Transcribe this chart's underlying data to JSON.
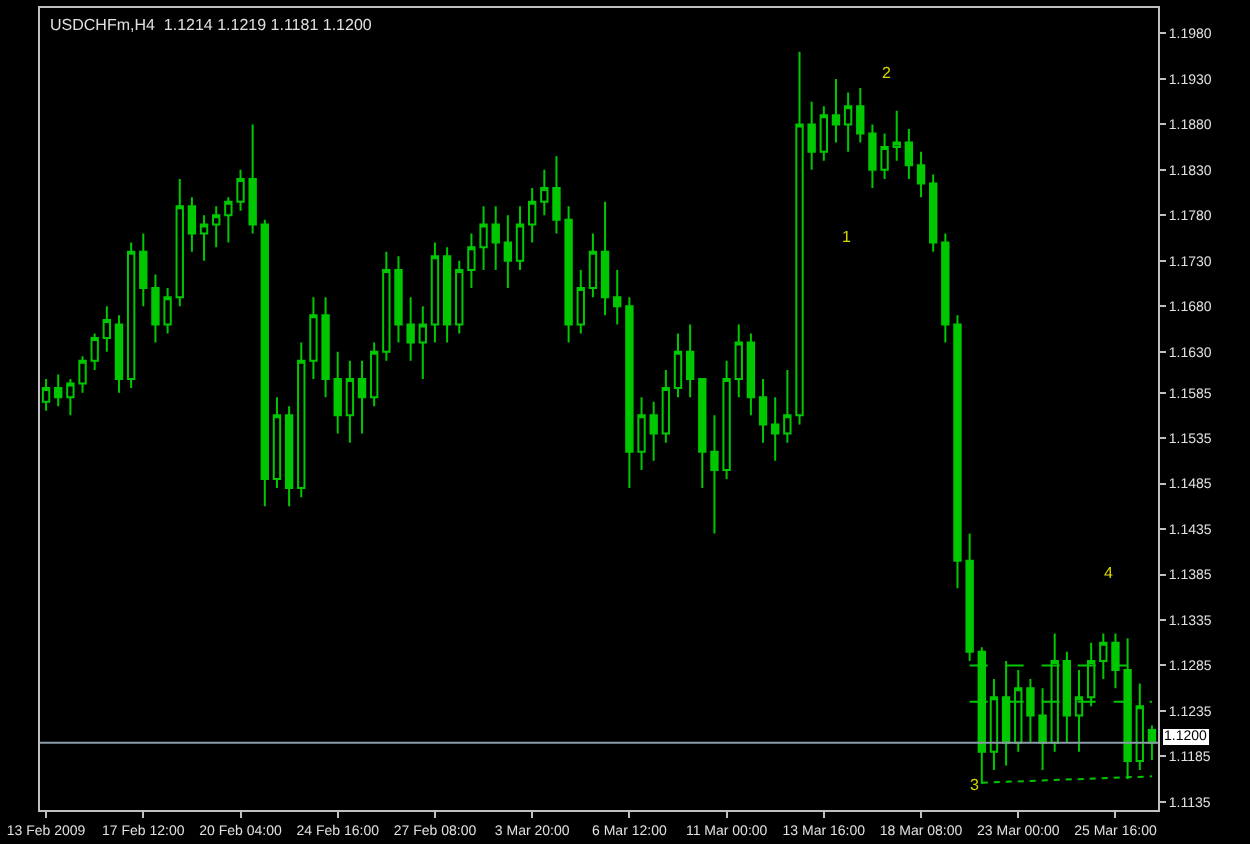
{
  "chart_data": {
    "type": "candlestick",
    "title": "USDCHFm,H4  1.1214 1.1219 1.1181 1.1200",
    "categories": [
      "13 Feb 2009",
      null,
      null,
      null,
      null,
      null,
      null,
      null,
      "17 Feb 12:00",
      null,
      null,
      null,
      null,
      null,
      null,
      null,
      "20 Feb 04:00",
      null,
      null,
      null,
      null,
      null,
      null,
      null,
      "24 Feb 16:00",
      null,
      null,
      null,
      null,
      null,
      null,
      null,
      "27 Feb 08:00",
      null,
      null,
      null,
      null,
      null,
      null,
      null,
      "3 Mar 20:00",
      null,
      null,
      null,
      null,
      null,
      null,
      null,
      "6 Mar 12:00",
      null,
      null,
      null,
      null,
      null,
      null,
      null,
      "11 Mar 00:00",
      null,
      null,
      null,
      null,
      null,
      null,
      null,
      "13 Mar 16:00",
      null,
      null,
      null,
      null,
      null,
      null,
      null,
      "18 Mar 08:00",
      null,
      null,
      null,
      null,
      null,
      null,
      null,
      "23 Mar 00:00",
      null,
      null,
      null,
      null,
      null,
      null,
      null,
      "25 Mar 16:00",
      null,
      null,
      null
    ],
    "series": [
      {
        "color": "#00c800",
        "ohlc": [
          [
            1.1575,
            1.16,
            1.1565,
            1.159
          ],
          [
            1.159,
            1.1605,
            1.157,
            1.158
          ],
          [
            1.158,
            1.16,
            1.156,
            1.1595
          ],
          [
            1.1595,
            1.1625,
            1.1585,
            1.162
          ],
          [
            1.162,
            1.165,
            1.161,
            1.1645
          ],
          [
            1.1645,
            1.168,
            1.163,
            1.1665
          ],
          [
            1.166,
            1.167,
            1.1585,
            1.16
          ],
          [
            1.16,
            1.175,
            1.159,
            1.174
          ],
          [
            1.174,
            1.176,
            1.168,
            1.17
          ],
          [
            1.17,
            1.1715,
            1.164,
            1.166
          ],
          [
            1.166,
            1.17,
            1.165,
            1.169
          ],
          [
            1.169,
            1.182,
            1.168,
            1.179
          ],
          [
            1.179,
            1.18,
            1.174,
            1.176
          ],
          [
            1.176,
            1.178,
            1.173,
            1.177
          ],
          [
            1.177,
            1.179,
            1.1745,
            1.178
          ],
          [
            1.178,
            1.18,
            1.175,
            1.1795
          ],
          [
            1.1795,
            1.183,
            1.1785,
            1.182
          ],
          [
            1.182,
            1.188,
            1.176,
            1.177
          ],
          [
            1.177,
            1.1775,
            1.146,
            1.149
          ],
          [
            1.149,
            1.158,
            1.148,
            1.156
          ],
          [
            1.156,
            1.157,
            1.146,
            1.148
          ],
          [
            1.148,
            1.164,
            1.147,
            1.162
          ],
          [
            1.162,
            1.169,
            1.16,
            1.167
          ],
          [
            1.167,
            1.169,
            1.158,
            1.16
          ],
          [
            1.16,
            1.163,
            1.154,
            1.156
          ],
          [
            1.156,
            1.162,
            1.153,
            1.16
          ],
          [
            1.16,
            1.162,
            1.154,
            1.158
          ],
          [
            1.158,
            1.164,
            1.157,
            1.163
          ],
          [
            1.163,
            1.174,
            1.162,
            1.172
          ],
          [
            1.172,
            1.1735,
            1.164,
            1.166
          ],
          [
            1.166,
            1.169,
            1.162,
            1.164
          ],
          [
            1.164,
            1.168,
            1.16,
            1.166
          ],
          [
            1.166,
            1.175,
            1.164,
            1.1735
          ],
          [
            1.1735,
            1.1745,
            1.164,
            1.166
          ],
          [
            1.166,
            1.173,
            1.165,
            1.172
          ],
          [
            1.172,
            1.176,
            1.17,
            1.1745
          ],
          [
            1.1745,
            1.179,
            1.172,
            1.177
          ],
          [
            1.177,
            1.179,
            1.172,
            1.175
          ],
          [
            1.175,
            1.178,
            1.17,
            1.173
          ],
          [
            1.173,
            1.179,
            1.172,
            1.177
          ],
          [
            1.177,
            1.181,
            1.175,
            1.1795
          ],
          [
            1.1795,
            1.183,
            1.178,
            1.181
          ],
          [
            1.181,
            1.1845,
            1.176,
            1.1775
          ],
          [
            1.1775,
            1.179,
            1.164,
            1.166
          ],
          [
            1.166,
            1.172,
            1.165,
            1.17
          ],
          [
            1.17,
            1.176,
            1.169,
            1.174
          ],
          [
            1.174,
            1.1795,
            1.167,
            1.169
          ],
          [
            1.169,
            1.172,
            1.166,
            1.168
          ],
          [
            1.168,
            1.169,
            1.148,
            1.152
          ],
          [
            1.152,
            1.158,
            1.15,
            1.156
          ],
          [
            1.156,
            1.1575,
            1.151,
            1.154
          ],
          [
            1.154,
            1.161,
            1.153,
            1.159
          ],
          [
            1.159,
            1.165,
            1.158,
            1.163
          ],
          [
            1.163,
            1.166,
            1.158,
            1.16
          ],
          [
            1.16,
            1.16,
            1.148,
            1.152
          ],
          [
            1.152,
            1.156,
            1.143,
            1.15
          ],
          [
            1.15,
            1.162,
            1.149,
            1.16
          ],
          [
            1.16,
            1.166,
            1.158,
            1.164
          ],
          [
            1.164,
            1.165,
            1.156,
            1.158
          ],
          [
            1.158,
            1.16,
            1.153,
            1.155
          ],
          [
            1.155,
            1.158,
            1.151,
            1.154
          ],
          [
            1.154,
            1.161,
            1.153,
            1.156
          ],
          [
            1.156,
            1.196,
            1.155,
            1.188
          ],
          [
            1.188,
            1.1905,
            1.183,
            1.185
          ],
          [
            1.185,
            1.19,
            1.184,
            1.189
          ],
          [
            1.189,
            1.193,
            1.186,
            1.188
          ],
          [
            1.188,
            1.1915,
            1.185,
            1.19
          ],
          [
            1.19,
            1.192,
            1.186,
            1.187
          ],
          [
            1.187,
            1.188,
            1.181,
            1.183
          ],
          [
            1.183,
            1.187,
            1.182,
            1.1855
          ],
          [
            1.1855,
            1.1895,
            1.184,
            1.186
          ],
          [
            1.186,
            1.1875,
            1.182,
            1.1835
          ],
          [
            1.1835,
            1.185,
            1.18,
            1.1815
          ],
          [
            1.1815,
            1.1825,
            1.174,
            1.175
          ],
          [
            1.175,
            1.176,
            1.164,
            1.166
          ],
          [
            1.166,
            1.167,
            1.137,
            1.14
          ],
          [
            1.14,
            1.143,
            1.129,
            1.13
          ],
          [
            1.13,
            1.1305,
            1.1155,
            1.119
          ],
          [
            1.119,
            1.127,
            1.117,
            1.125
          ],
          [
            1.125,
            1.129,
            1.1175,
            1.12
          ],
          [
            1.12,
            1.128,
            1.119,
            1.126
          ],
          [
            1.126,
            1.127,
            1.12,
            1.123
          ],
          [
            1.123,
            1.126,
            1.117,
            1.12
          ],
          [
            1.12,
            1.132,
            1.119,
            1.129
          ],
          [
            1.129,
            1.13,
            1.12,
            1.123
          ],
          [
            1.123,
            1.128,
            1.119,
            1.125
          ],
          [
            1.125,
            1.131,
            1.124,
            1.129
          ],
          [
            1.129,
            1.132,
            1.127,
            1.131
          ],
          [
            1.131,
            1.132,
            1.126,
            1.128
          ],
          [
            1.128,
            1.1315,
            1.116,
            1.118
          ],
          [
            1.118,
            1.1265,
            1.117,
            1.124
          ],
          [
            1.1214,
            1.1219,
            1.1181,
            1.12
          ]
        ]
      },
      {
        "type": "line",
        "color": "#00c800",
        "line_style": "dashed",
        "values": [
          null,
          null,
          null,
          null,
          null,
          null,
          null,
          null,
          null,
          null,
          null,
          null,
          null,
          null,
          null,
          null,
          null,
          null,
          null,
          null,
          null,
          null,
          null,
          null,
          null,
          null,
          null,
          null,
          null,
          null,
          null,
          null,
          null,
          null,
          null,
          null,
          null,
          null,
          null,
          null,
          null,
          null,
          null,
          null,
          null,
          null,
          null,
          null,
          null,
          null,
          null,
          null,
          null,
          null,
          null,
          null,
          null,
          null,
          null,
          null,
          null,
          null,
          null,
          null,
          null,
          null,
          null,
          null,
          null,
          null,
          null,
          null,
          null,
          null,
          null,
          null,
          1.1285,
          null,
          null,
          null,
          null,
          null,
          null,
          null,
          null,
          null,
          null,
          null,
          null,
          1.1285,
          null,
          null
        ]
      },
      {
        "type": "line",
        "color": "#00c800",
        "line_style": "dashed",
        "values": [
          null,
          null,
          null,
          null,
          null,
          null,
          null,
          null,
          null,
          null,
          null,
          null,
          null,
          null,
          null,
          null,
          null,
          null,
          null,
          null,
          null,
          null,
          null,
          null,
          null,
          null,
          null,
          null,
          null,
          null,
          null,
          null,
          null,
          null,
          null,
          null,
          null,
          null,
          null,
          null,
          null,
          null,
          null,
          null,
          null,
          null,
          null,
          null,
          null,
          null,
          null,
          null,
          null,
          null,
          null,
          null,
          null,
          null,
          null,
          null,
          null,
          null,
          null,
          null,
          null,
          null,
          null,
          null,
          null,
          null,
          null,
          null,
          null,
          null,
          null,
          null,
          1.1245,
          null,
          null,
          null,
          null,
          null,
          null,
          null,
          null,
          null,
          null,
          null,
          null,
          null,
          null,
          1.1245
        ]
      },
      {
        "type": "line",
        "color": "#00c800",
        "line_style": "dotted",
        "values": [
          null,
          null,
          null,
          null,
          null,
          null,
          null,
          null,
          null,
          null,
          null,
          null,
          null,
          null,
          null,
          null,
          null,
          null,
          null,
          null,
          null,
          null,
          null,
          null,
          null,
          null,
          null,
          null,
          null,
          null,
          null,
          null,
          null,
          null,
          null,
          null,
          null,
          null,
          null,
          null,
          null,
          null,
          null,
          null,
          null,
          null,
          null,
          null,
          null,
          null,
          null,
          null,
          null,
          null,
          null,
          null,
          null,
          null,
          null,
          null,
          null,
          null,
          null,
          null,
          null,
          null,
          null,
          null,
          null,
          null,
          null,
          null,
          null,
          null,
          null,
          null,
          null,
          1.1156,
          null,
          null,
          null,
          null,
          null,
          null,
          null,
          null,
          null,
          null,
          null,
          null,
          null,
          1.1163
        ]
      }
    ],
    "ylim": [
      1.1126,
      1.2008
    ],
    "yticks": [
      1.1135,
      1.1185,
      1.1235,
      1.1285,
      1.1335,
      1.1385,
      1.1435,
      1.1485,
      1.1535,
      1.1585,
      {
        "value": 1.163,
        "label": "1.1630"
      },
      {
        "value": 1.168,
        "label": "1.1680"
      },
      {
        "value": 1.173,
        "label": "1.1730"
      },
      {
        "value": 1.178,
        "label": "1.1780"
      },
      {
        "value": 1.183,
        "label": "1.1830"
      },
      {
        "value": 1.188,
        "label": "1.1880"
      },
      {
        "value": 1.193,
        "label": "1.1930"
      },
      {
        "value": 1.198,
        "label": "1.1980"
      }
    ],
    "ref_lines": [
      {
        "axis": "y",
        "value": 1.12,
        "label": "1.1200",
        "color": "#8c9ca8"
      }
    ],
    "annotations": [
      "1",
      "2",
      "3",
      "4"
    ],
    "grid": false
  }
}
